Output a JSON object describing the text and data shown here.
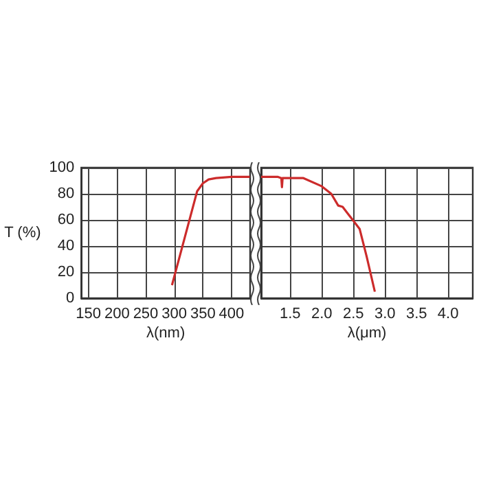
{
  "chart_data": [
    {
      "type": "line",
      "ylabel": "T (%)",
      "xlabel": "λ(nm)",
      "color": "#cc2b2b",
      "x": [
        296,
        340,
        350,
        360,
        373,
        400,
        432
      ],
      "values": [
        10,
        82,
        88,
        91,
        92,
        93,
        93
      ],
      "xlim": [
        137.5,
        432.5
      ],
      "xticks": [
        150,
        200,
        250,
        300,
        350,
        400
      ],
      "ylim": [
        0,
        100
      ],
      "yticks": [
        0,
        20,
        40,
        60,
        80,
        100
      ],
      "grid": true
    },
    {
      "type": "line",
      "xlabel": "λ(μm)",
      "color": "#cc2b2b",
      "x": [
        1.04,
        1.3,
        1.36,
        1.37,
        1.38,
        1.4,
        1.71,
        1.99,
        2.15,
        2.26,
        2.33,
        2.6,
        2.71,
        2.84
      ],
      "values": [
        93,
        93,
        92,
        85,
        92,
        92,
        92,
        86,
        80,
        71,
        70,
        53,
        32,
        5
      ],
      "xlim": [
        1.04,
        4.39
      ],
      "xticks": [
        {
          "value": 1.5,
          "label": "1.5"
        },
        {
          "value": 2,
          "label": "2.0"
        },
        {
          "value": 2.5,
          "label": "2.5"
        },
        {
          "value": 3,
          "label": "3.0"
        },
        {
          "value": 3.5,
          "label": "3.5"
        },
        {
          "value": 4,
          "label": "4.0"
        }
      ],
      "ylim": [
        0,
        100
      ],
      "yticks": [
        0,
        20,
        40,
        60,
        80,
        100
      ],
      "grid": true,
      "tick_labels": "x"
    }
  ]
}
